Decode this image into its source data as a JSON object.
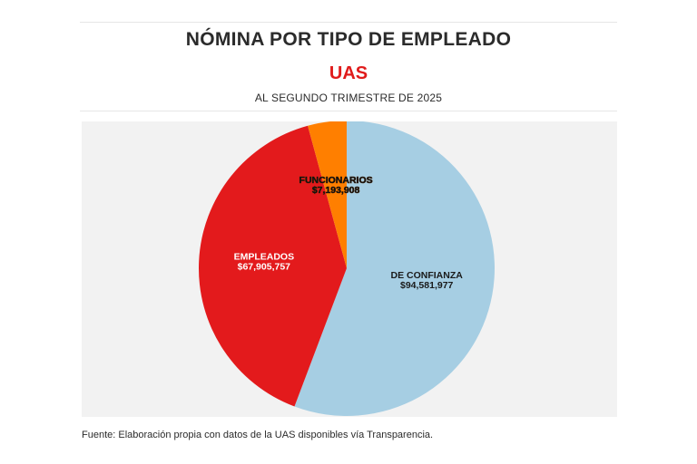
{
  "header": {
    "title": "NÓMINA POR TIPO DE EMPLEADO",
    "subtitle": "UAS",
    "period": "AL SEGUNDO TRIMESTRE DE 2025"
  },
  "colors": {
    "subtitle": "#e01b1b",
    "plot_background": "#f2f2f2"
  },
  "chart_data": {
    "type": "pie",
    "title": "NÓMINA POR TIPO DE EMPLEADO",
    "start_angle_deg": 0,
    "direction": "clockwise",
    "slices": [
      {
        "label": "DE CONFIANZA",
        "value": 94581977,
        "display": "$94,581,977",
        "color": "#a6cee3",
        "label_color": "#1a1a1a",
        "label_outline": "none"
      },
      {
        "label": "EMPLEADOS",
        "value": 67905757,
        "display": "$67,905,757",
        "color": "#e31a1c",
        "label_color": "#ffffff",
        "label_outline": "none"
      },
      {
        "label": "FUNCIONARIOS",
        "value": 7193908,
        "display": "$7,193,908",
        "color": "#ff7f00",
        "label_color": "#111111",
        "label_outline": "#ff7f00"
      }
    ]
  },
  "footer": {
    "source": "Fuente: Elaboración propia con datos de la UAS disponibles vía Transparencia."
  }
}
